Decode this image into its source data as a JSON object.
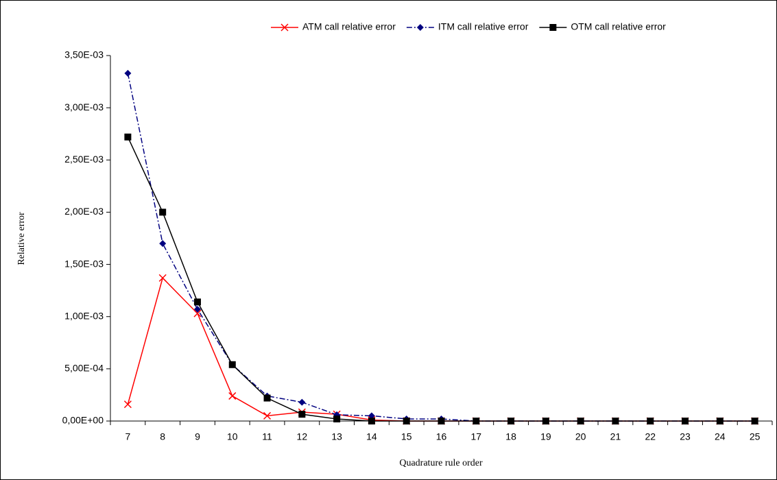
{
  "chart_data": {
    "type": "line",
    "x_label": "Quadrature rule order",
    "y_label": "Relative error",
    "categories": [
      "7",
      "8",
      "9",
      "10",
      "11",
      "12",
      "13",
      "14",
      "15",
      "16",
      "17",
      "18",
      "19",
      "20",
      "21",
      "22",
      "23",
      "24",
      "25"
    ],
    "series": [
      {
        "name": "ATM call relative error",
        "color": "#ff0000",
        "line_style": "solid",
        "marker": "x",
        "values": [
          0.00016,
          0.00137,
          0.00103,
          0.00024,
          5e-05,
          8.5e-05,
          6.5e-05,
          1e-05,
          0,
          0,
          0,
          0,
          0,
          0,
          0,
          0,
          0,
          0,
          0
        ]
      },
      {
        "name": "ITM call relative error",
        "color": "#000080",
        "line_style": "dash-dot",
        "marker": "diamond",
        "values": [
          0.00333,
          0.0017,
          0.00107,
          0.00054,
          0.00024,
          0.00018,
          6e-05,
          5e-05,
          2e-05,
          2e-05,
          0,
          0,
          0,
          0,
          0,
          0,
          0,
          0,
          0
        ]
      },
      {
        "name": "OTM call relative error",
        "color": "#000000",
        "line_style": "solid",
        "marker": "square",
        "values": [
          0.00272,
          0.002,
          0.00114,
          0.00054,
          0.00022,
          6.5e-05,
          2e-05,
          0,
          0,
          0,
          0,
          0,
          0,
          0,
          0,
          0,
          0,
          0,
          0
        ]
      }
    ],
    "ylim": [
      0,
      0.0035
    ],
    "yticks": [
      {
        "value": 0,
        "label": "0,00E+00"
      },
      {
        "value": 0.0005,
        "label": "5,00E-04"
      },
      {
        "value": 0.001,
        "label": "1,00E-03"
      },
      {
        "value": 0.0015,
        "label": "1,50E-03"
      },
      {
        "value": 0.002,
        "label": "2,00E-03"
      },
      {
        "value": 0.0025,
        "label": "2,50E-03"
      },
      {
        "value": 0.003,
        "label": "3,00E-03"
      },
      {
        "value": 0.0035,
        "label": "3,50E-03"
      }
    ],
    "grid": false,
    "legend": "top-right"
  }
}
